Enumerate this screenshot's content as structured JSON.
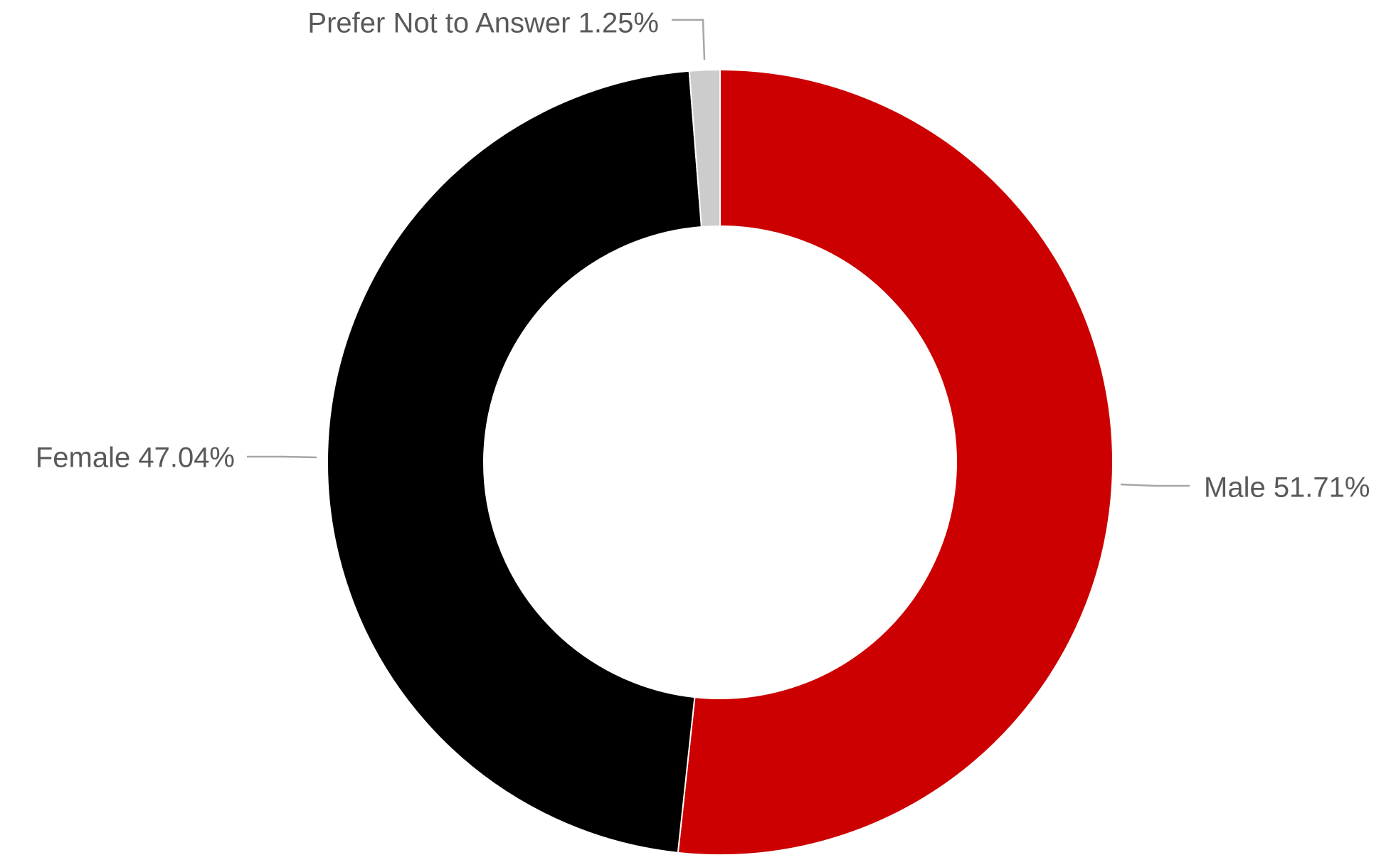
{
  "chart_data": {
    "type": "pie",
    "variant": "donut",
    "slices": [
      {
        "label": "Male",
        "value": 51.71,
        "value_label": "51.71%",
        "color": "#cc0000"
      },
      {
        "label": "Female",
        "value": 47.04,
        "value_label": "47.04%",
        "color": "#000000"
      },
      {
        "label": "Prefer Not to Answer",
        "value": 1.25,
        "value_label": "1.25%",
        "color": "#cccccc"
      }
    ],
    "start": "top",
    "direction": "clockwise",
    "legend": "none",
    "labels": "outside with leader lines"
  }
}
